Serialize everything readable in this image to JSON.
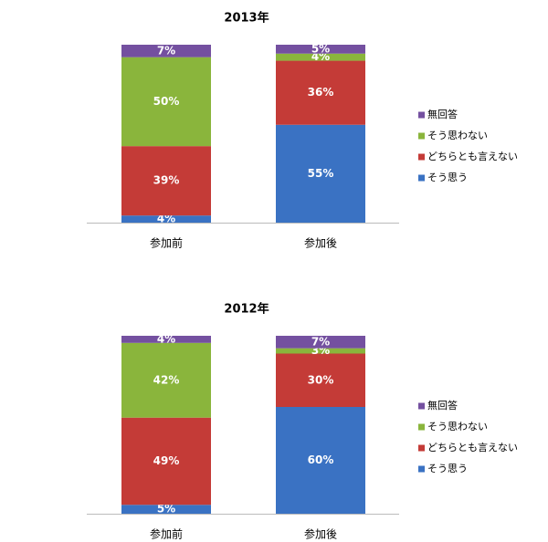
{
  "chart_data": [
    {
      "type": "stacked_bar",
      "title": "2013年",
      "categories": [
        "参加前",
        "参加後"
      ],
      "series": [
        {
          "name": "そう思う",
          "color": "#3a72c3",
          "values": [
            4,
            55
          ],
          "value_labels": [
            "4%",
            "55%"
          ]
        },
        {
          "name": "どちらとも言えない",
          "color": "#c43b37",
          "values": [
            39,
            36
          ],
          "value_labels": [
            "39%",
            "36%"
          ]
        },
        {
          "name": "そう思わない",
          "color": "#8ab53c",
          "values": [
            50,
            4
          ],
          "value_labels": [
            "50%",
            "4%"
          ]
        },
        {
          "name": "無回答",
          "color": "#7450a0",
          "values": [
            7,
            5
          ],
          "value_labels": [
            "7%",
            "5%"
          ]
        }
      ]
    },
    {
      "type": "stacked_bar",
      "title": "2012年",
      "categories": [
        "参加前",
        "参加後"
      ],
      "series": [
        {
          "name": "そう思う",
          "color": "#3a72c3",
          "values": [
            5,
            60
          ],
          "value_labels": [
            "5%",
            "60%"
          ]
        },
        {
          "name": "どちらとも言えない",
          "color": "#c43b37",
          "values": [
            49,
            30
          ],
          "value_labels": [
            "49%",
            "30%"
          ]
        },
        {
          "name": "そう思わない",
          "color": "#8ab53c",
          "values": [
            42,
            3
          ],
          "value_labels": [
            "42%",
            "3%"
          ]
        },
        {
          "name": "無回答",
          "color": "#7450a0",
          "values": [
            4,
            7
          ],
          "value_labels": [
            "4%",
            "7%"
          ]
        }
      ]
    }
  ]
}
